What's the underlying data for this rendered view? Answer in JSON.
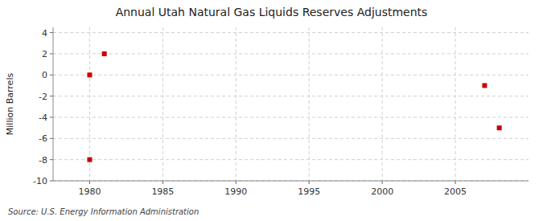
{
  "chart_data": {
    "type": "scatter",
    "title": "Annual Utah Natural Gas Liquids Reserves Adjustments",
    "ylabel": "Million Barrels",
    "source": "Source: U.S. Energy Information Administration",
    "x": [
      1980,
      1981,
      1980,
      2007,
      2008
    ],
    "values": [
      0,
      2,
      -8,
      -1,
      -5
    ],
    "color": "#cc0000",
    "marker": "square",
    "xlim": [
      1977.5,
      2010
    ],
    "ylim": [
      -10,
      4.5
    ],
    "xticks": [
      1980,
      1985,
      1990,
      1995,
      2000,
      2005
    ],
    "yticks": [
      -10,
      -8,
      -6,
      -4,
      -2,
      0,
      2,
      4
    ],
    "grid": true
  }
}
